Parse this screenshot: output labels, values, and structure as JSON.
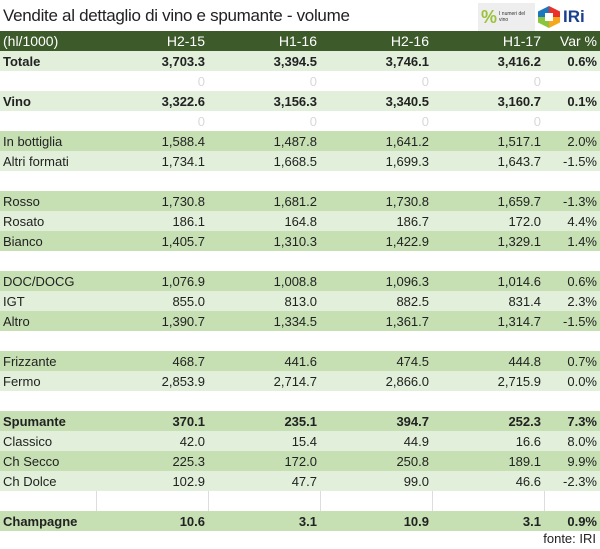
{
  "title": "Vendite al dettaglio di vino e spumante - volume",
  "logos": {
    "numeri_del_vino": "I numeri del vino",
    "iri": "IRi"
  },
  "table": {
    "headers": [
      "(hl/1000)",
      "H2-15",
      "H1-16",
      "H2-16",
      "H1-17",
      "Var %"
    ],
    "rows": [
      {
        "style": "light",
        "bold": true,
        "label": "Totale",
        "values": [
          "3,703.3",
          "3,394.5",
          "3,746.1",
          "3,416.2",
          "0.6%"
        ]
      },
      {
        "style": "zero",
        "label": "",
        "values": [
          "0",
          "0",
          "0",
          "0",
          ""
        ]
      },
      {
        "style": "light",
        "bold": true,
        "label": "Vino",
        "values": [
          "3,322.6",
          "3,156.3",
          "3,340.5",
          "3,160.7",
          "0.1%"
        ]
      },
      {
        "style": "zero",
        "label": "",
        "values": [
          "0",
          "0",
          "0",
          "0",
          ""
        ]
      },
      {
        "style": "dark",
        "label": "In bottiglia",
        "values": [
          "1,588.4",
          "1,487.8",
          "1,641.2",
          "1,517.1",
          "2.0%"
        ]
      },
      {
        "style": "light",
        "label": "Altri formati",
        "values": [
          "1,734.1",
          "1,668.5",
          "1,699.3",
          "1,643.7",
          "-1.5%"
        ]
      },
      {
        "style": "blank",
        "label": "",
        "values": [
          "",
          "",
          "",
          "",
          ""
        ]
      },
      {
        "style": "dark",
        "label": "Rosso",
        "values": [
          "1,730.8",
          "1,681.2",
          "1,730.8",
          "1,659.7",
          "-1.3%"
        ]
      },
      {
        "style": "light",
        "label": "Rosato",
        "values": [
          "186.1",
          "164.8",
          "186.7",
          "172.0",
          "4.4%"
        ]
      },
      {
        "style": "dark",
        "label": "Bianco",
        "values": [
          "1,405.7",
          "1,310.3",
          "1,422.9",
          "1,329.1",
          "1.4%"
        ]
      },
      {
        "style": "blank",
        "label": "",
        "values": [
          "",
          "",
          "",
          "",
          ""
        ]
      },
      {
        "style": "dark",
        "label": "DOC/DOCG",
        "values": [
          "1,076.9",
          "1,008.8",
          "1,096.3",
          "1,014.6",
          "0.6%"
        ]
      },
      {
        "style": "light",
        "label": "IGT",
        "values": [
          "855.0",
          "813.0",
          "882.5",
          "831.4",
          "2.3%"
        ]
      },
      {
        "style": "dark",
        "label": "Altro",
        "values": [
          "1,390.7",
          "1,334.5",
          "1,361.7",
          "1,314.7",
          "-1.5%"
        ]
      },
      {
        "style": "blank",
        "label": "",
        "values": [
          "",
          "",
          "",
          "",
          ""
        ]
      },
      {
        "style": "dark",
        "label": "Frizzante",
        "values": [
          "468.7",
          "441.6",
          "474.5",
          "444.8",
          "0.7%"
        ]
      },
      {
        "style": "light",
        "label": "Fermo",
        "values": [
          "2,853.9",
          "2,714.7",
          "2,866.0",
          "2,715.9",
          "0.0%"
        ]
      },
      {
        "style": "blank",
        "label": "",
        "values": [
          "",
          "",
          "",
          "",
          ""
        ]
      },
      {
        "style": "dark",
        "bold": true,
        "label": "Spumante",
        "values": [
          "370.1",
          "235.1",
          "394.7",
          "252.3",
          "7.3%"
        ]
      },
      {
        "style": "light",
        "label": "Classico",
        "values": [
          "42.0",
          "15.4",
          "44.9",
          "16.6",
          "8.0%"
        ]
      },
      {
        "style": "dark",
        "label": "Ch Secco",
        "values": [
          "225.3",
          "172.0",
          "250.8",
          "189.1",
          "9.9%"
        ]
      },
      {
        "style": "light",
        "label": "Ch Dolce",
        "values": [
          "102.9",
          "47.7",
          "99.0",
          "46.6",
          "-2.3%"
        ]
      },
      {
        "style": "grid",
        "label": "",
        "values": [
          "",
          "",
          "",
          "",
          ""
        ]
      },
      {
        "style": "dark",
        "bold": true,
        "label": "Champagne",
        "values": [
          "10.6",
          "3.1",
          "10.9",
          "3.1",
          "0.9%"
        ]
      }
    ]
  },
  "source": "fonte: IRI"
}
